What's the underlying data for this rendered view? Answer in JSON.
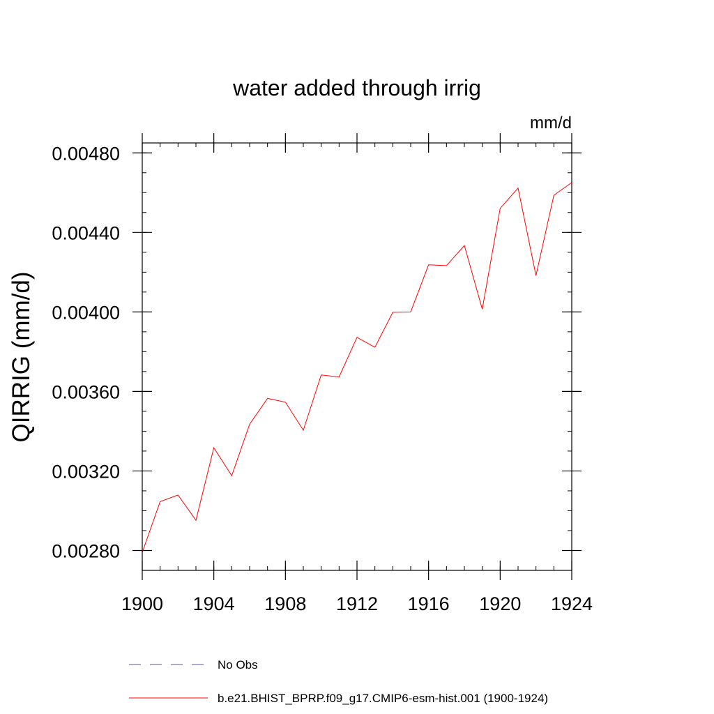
{
  "chart_data": {
    "type": "line",
    "title": "water added through irrig",
    "units": "mm/d",
    "xlabel": "",
    "ylabel": "QIRRIG  (mm/d)",
    "xlim": [
      1900,
      1924
    ],
    "ylim": [
      0.0027,
      0.00485
    ],
    "x_ticks": [
      1900,
      1904,
      1908,
      1912,
      1916,
      1920,
      1924
    ],
    "x_tick_labels": [
      "1900",
      "1904",
      "1908",
      "1912",
      "1916",
      "1920",
      "1924"
    ],
    "y_ticks": [
      0.0028,
      0.0032,
      0.0036,
      0.004,
      0.0044,
      0.0048
    ],
    "y_tick_labels": [
      "0.00280",
      "0.00320",
      "0.00360",
      "0.00400",
      "0.00440",
      "0.00480"
    ],
    "y_minor_step": 0.0001,
    "grid": false,
    "legend_position": "bottom",
    "series": [
      {
        "name": "b.e21.BHIST_BPRP.f09_g17.CMIP6-esm-hist.001 (1900-1924)",
        "color": "#ff0000",
        "dash": "solid",
        "x": [
          1900,
          1901,
          1902,
          1903,
          1904,
          1905,
          1906,
          1907,
          1908,
          1909,
          1910,
          1911,
          1912,
          1913,
          1914,
          1915,
          1916,
          1917,
          1918,
          1919,
          1920,
          1921,
          1922,
          1923,
          1924
        ],
        "values": [
          0.00279,
          0.003046,
          0.003079,
          0.002952,
          0.003317,
          0.003176,
          0.003435,
          0.003565,
          0.003546,
          0.003405,
          0.003683,
          0.003673,
          0.003872,
          0.003822,
          0.003998,
          0.004,
          0.004237,
          0.004233,
          0.004334,
          0.004014,
          0.004521,
          0.004623,
          0.004183,
          0.004587,
          0.004651
        ]
      }
    ],
    "legend": [
      {
        "label": "No Obs",
        "color": "#5555aa",
        "dash": "dashed"
      },
      {
        "label": "b.e21.BHIST_BPRP.f09_g17.CMIP6-esm-hist.001 (1900-1924)",
        "color": "#ff0000",
        "dash": "solid"
      }
    ]
  }
}
